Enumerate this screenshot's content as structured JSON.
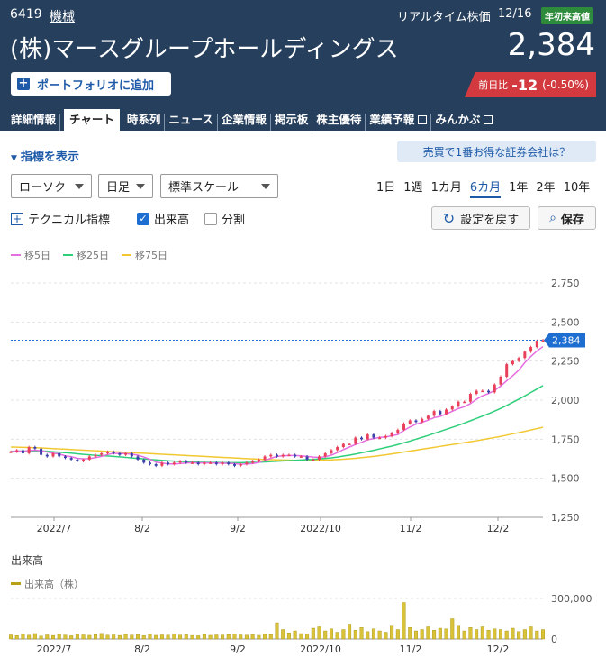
{
  "header": {
    "code": "6419",
    "sector": "機械",
    "realtime_label": "リアルタイム株価",
    "date": "12/16",
    "high_badge": "年初来高値",
    "company_name": "(株)マースグループホールディングス",
    "price": "2,384",
    "portfolio_button": "ポートフォリオに追加",
    "change_label": "前日比",
    "change_value": "-12",
    "change_pct": "(-0.50%)",
    "colors": {
      "bg": "#263f5c",
      "down": "#d23a3f",
      "badge": "#2e8b3c"
    }
  },
  "tabs": [
    "詳細情報",
    "チャート",
    "時系列",
    "ニュース",
    "企業情報",
    "掲示板",
    "株主優待",
    "業績予報",
    "みんかぶ"
  ],
  "active_tab": "チャート",
  "controls": {
    "indicator_toggle": "指標を表示",
    "broker_link": "売買で1番お得な証券会社は？",
    "chart_type": "ローソク",
    "interval": "日足",
    "scale": "標準スケール",
    "periods": [
      "1日",
      "1週",
      "1カ月",
      "6カ月",
      "1年",
      "2年",
      "10年"
    ],
    "active_period": "6カ月",
    "technical": "テクニカル指標",
    "volume_toggle": "出来高",
    "split_toggle": "分割",
    "reset_button": "設定を戻す",
    "save_button": "保存"
  },
  "chart_data": {
    "type": "line",
    "ma_legend": [
      {
        "name": "移5日",
        "color": "#e56ee0"
      },
      {
        "name": "移25日",
        "color": "#2ecf7a"
      },
      {
        "name": "移75日",
        "color": "#f2c832"
      }
    ],
    "x_ticks": [
      "2022/7",
      "8/2",
      "9/2",
      "2022/10",
      "11/2",
      "12/2"
    ],
    "y_ticks": [
      "2,750",
      "2,500",
      "2,250",
      "2,000",
      "1,750",
      "1,500",
      "1,250"
    ],
    "ylim": [
      1250,
      2750
    ],
    "current_price_label": "2,384",
    "current_price": 2384,
    "close": [
      1670,
      1680,
      1660,
      1700,
      1690,
      1650,
      1640,
      1660,
      1640,
      1630,
      1620,
      1610,
      1620,
      1640,
      1650,
      1660,
      1670,
      1660,
      1650,
      1660,
      1640,
      1620,
      1600,
      1590,
      1580,
      1600,
      1590,
      1600,
      1610,
      1600,
      1600,
      1590,
      1600,
      1600,
      1590,
      1600,
      1590,
      1580,
      1590,
      1600,
      1610,
      1620,
      1640,
      1650,
      1640,
      1650,
      1650,
      1640,
      1640,
      1620,
      1620,
      1640,
      1660,
      1680,
      1700,
      1720,
      1720,
      1760,
      1750,
      1780,
      1760,
      1760,
      1770,
      1790,
      1810,
      1850,
      1870,
      1860,
      1880,
      1900,
      1930,
      1910,
      1940,
      1960,
      1990,
      1990,
      2040,
      2060,
      2060,
      2050,
      2100,
      2150,
      2230,
      2250,
      2270,
      2310,
      2340,
      2380,
      2384
    ],
    "ma5": [
      1670,
      1675,
      1672,
      1678,
      1680,
      1676,
      1668,
      1660,
      1656,
      1644,
      1638,
      1628,
      1624,
      1626,
      1632,
      1640,
      1652,
      1660,
      1658,
      1658,
      1654,
      1648,
      1636,
      1622,
      1604,
      1598,
      1592,
      1592,
      1594,
      1598,
      1600,
      1598,
      1598,
      1598,
      1598,
      1596,
      1596,
      1594,
      1590,
      1592,
      1594,
      1602,
      1614,
      1628,
      1640,
      1644,
      1646,
      1646,
      1644,
      1640,
      1636,
      1634,
      1638,
      1648,
      1664,
      1684,
      1700,
      1716,
      1730,
      1746,
      1754,
      1762,
      1764,
      1772,
      1780,
      1806,
      1828,
      1846,
      1858,
      1872,
      1888,
      1896,
      1912,
      1928,
      1946,
      1958,
      1978,
      2006,
      2028,
      2042,
      2062,
      2090,
      2124,
      2156,
      2192,
      2240,
      2280,
      2314,
      2343
    ],
    "ma25": [
      1672,
      1673,
      1674,
      1675,
      1676,
      1675,
      1673,
      1670,
      1667,
      1664,
      1661,
      1657,
      1653,
      1650,
      1647,
      1645,
      1643,
      1640,
      1637,
      1634,
      1630,
      1627,
      1624,
      1621,
      1618,
      1615,
      1612,
      1610,
      1608,
      1606,
      1604,
      1603,
      1602,
      1601,
      1601,
      1600,
      1600,
      1600,
      1600,
      1601,
      1602,
      1603,
      1605,
      1607,
      1609,
      1611,
      1613,
      1615,
      1617,
      1619,
      1621,
      1624,
      1627,
      1631,
      1636,
      1642,
      1648,
      1655,
      1663,
      1671,
      1679,
      1688,
      1697,
      1706,
      1716,
      1727,
      1738,
      1750,
      1762,
      1774,
      1787,
      1800,
      1813,
      1826,
      1839,
      1853,
      1868,
      1883,
      1898,
      1913,
      1930,
      1947,
      1966,
      1986,
      2006,
      2027,
      2049,
      2071,
      2093
    ],
    "ma75": [
      1700,
      1699,
      1698,
      1697,
      1696,
      1694,
      1692,
      1690,
      1688,
      1686,
      1684,
      1682,
      1680,
      1678,
      1676,
      1674,
      1672,
      1670,
      1668,
      1666,
      1664,
      1662,
      1660,
      1658,
      1656,
      1654,
      1652,
      1650,
      1648,
      1646,
      1644,
      1642,
      1640,
      1638,
      1636,
      1634,
      1632,
      1630,
      1628,
      1626,
      1624,
      1622,
      1620,
      1619,
      1618,
      1617,
      1616,
      1615,
      1615,
      1615,
      1615,
      1616,
      1617,
      1618,
      1620,
      1622,
      1625,
      1628,
      1632,
      1636,
      1640,
      1645,
      1650,
      1656,
      1662,
      1668,
      1674,
      1680,
      1686,
      1692,
      1698,
      1704,
      1710,
      1716,
      1722,
      1728,
      1734,
      1740,
      1747,
      1754,
      1761,
      1768,
      1776,
      1784,
      1792,
      1800,
      1809,
      1818,
      1826
    ],
    "volume": {
      "label": "出来高",
      "legend": "出来高（株）",
      "y_ticks": [
        "300,000",
        "0"
      ],
      "ylim": [
        0,
        300000
      ],
      "values": [
        30000,
        25000,
        35000,
        28000,
        40000,
        22000,
        30000,
        26000,
        34000,
        29000,
        24000,
        36000,
        30000,
        27000,
        32000,
        41000,
        28000,
        30000,
        26000,
        33000,
        29000,
        31000,
        25000,
        34000,
        27000,
        30000,
        28000,
        36000,
        29000,
        31000,
        26000,
        24000,
        33000,
        27000,
        30000,
        29000,
        32000,
        35000,
        30000,
        28000,
        31000,
        27000,
        34000,
        32000,
        120000,
        70000,
        45000,
        60000,
        40000,
        38000,
        80000,
        90000,
        60000,
        75000,
        50000,
        70000,
        110000,
        65000,
        85000,
        55000,
        75000,
        60000,
        50000,
        95000,
        70000,
        270000,
        85000,
        60000,
        70000,
        90000,
        65000,
        80000,
        75000,
        150000,
        95000,
        60000,
        85000,
        70000,
        90000,
        65000,
        75000,
        70000,
        60000,
        80000,
        55000,
        70000,
        90000,
        60000,
        70000
      ]
    }
  }
}
